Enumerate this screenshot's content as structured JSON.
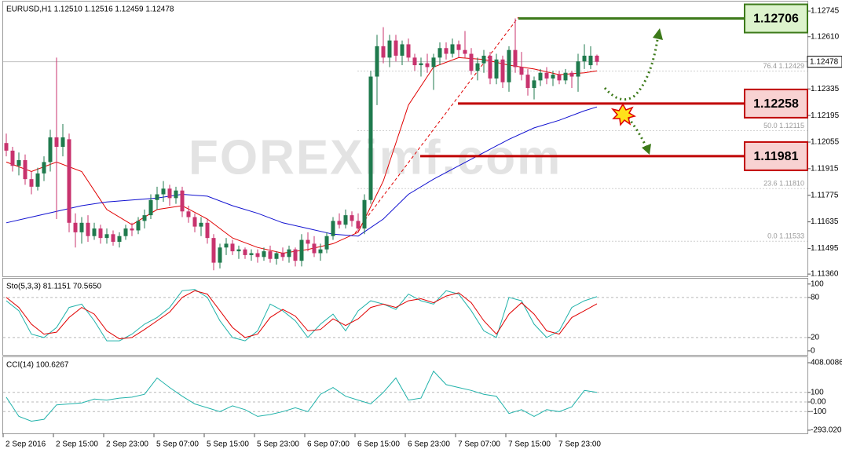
{
  "chart_data": [
    {
      "type": "candlestick",
      "title": "EURUSD,H1  1.12510 1.12516 1.12459 1.12478",
      "watermark": "FOREXimf.com",
      "up_color": "#1f7a4d",
      "down_color": "#c8336e",
      "xlim": [
        -0.5,
        127.5
      ],
      "ylim": [
        1.11348,
        1.12795
      ],
      "yticks": [
        1.12745,
        {
          "value": 1.1261,
          "label": "1.12610"
        },
        1.12335,
        1.12195,
        1.12055,
        1.11915,
        1.11775,
        1.11635,
        1.11495,
        {
          "value": 1.1136,
          "label": "1.11360"
        }
      ],
      "xticks": [
        {
          "value": 0,
          "label": "2 Sep 2016"
        },
        {
          "value": 8,
          "label": "2 Sep 15:00"
        },
        {
          "value": 16,
          "label": "2 Sep 23:00"
        },
        {
          "value": 24,
          "label": "5 Sep 07:00"
        },
        {
          "value": 32,
          "label": "5 Sep 15:00"
        },
        {
          "value": 40,
          "label": "5 Sep 23:00"
        },
        {
          "value": 48,
          "label": "6 Sep 07:00"
        },
        {
          "value": 56,
          "label": "6 Sep 15:00"
        },
        {
          "value": 64,
          "label": "6 Sep 23:00"
        },
        {
          "value": 72,
          "label": "7 Sep 07:00"
        },
        {
          "value": 80,
          "label": "7 Sep 15:00"
        },
        {
          "value": 88,
          "label": "7 Sep 23:00"
        }
      ],
      "last": 1.12478,
      "levels": [
        {
          "value": 1.12706,
          "color": "#3d7a1a",
          "fill": "#dcf3cc"
        },
        {
          "value": 1.12258,
          "color": "#c00000",
          "fill": "#f8d2d2"
        },
        {
          "value": 1.11981,
          "color": "#c00000",
          "fill": "#f8d2d2"
        }
      ],
      "fibo": [
        {
          "value": 1.12429,
          "label": "76.4  1.12429"
        },
        {
          "value": 1.12115,
          "label": "50.0  1.12115"
        },
        {
          "value": 1.1181,
          "label": "23.6  1.11810"
        },
        {
          "value": 1.11533,
          "label": "0.0  1.11533"
        }
      ],
      "candles": [
        [
          1.1205,
          1.121,
          1.1198,
          1.1201
        ],
        [
          1.1201,
          1.1203,
          1.119,
          1.1193
        ],
        [
          1.1193,
          1.12,
          1.1188,
          1.1196
        ],
        [
          1.1196,
          1.1199,
          1.1183,
          1.1186
        ],
        [
          1.1186,
          1.119,
          1.1178,
          1.1182
        ],
        [
          1.1182,
          1.1192,
          1.118,
          1.1189
        ],
        [
          1.1189,
          1.1198,
          1.1185,
          1.1195
        ],
        [
          1.1195,
          1.1212,
          1.119,
          1.1208
        ],
        [
          1.1208,
          1.125,
          1.1165,
          1.1203
        ],
        [
          1.1203,
          1.1215,
          1.1198,
          1.1208
        ],
        [
          1.1207,
          1.121,
          1.1158,
          1.1163
        ],
        [
          1.1163,
          1.1168,
          1.115,
          1.1158
        ],
        [
          1.1158,
          1.1166,
          1.1152,
          1.1163
        ],
        [
          1.1163,
          1.1167,
          1.1153,
          1.1156
        ],
        [
          1.1156,
          1.1163,
          1.1154,
          1.116
        ],
        [
          1.116,
          1.1162,
          1.1152,
          1.1155
        ],
        [
          1.1155,
          1.116,
          1.1152,
          1.1157
        ],
        [
          1.1157,
          1.1159,
          1.1151,
          1.1153
        ],
        [
          1.1153,
          1.1158,
          1.115,
          1.1156
        ],
        [
          1.1156,
          1.1162,
          1.1154,
          1.116
        ],
        [
          1.116,
          1.1163,
          1.1156,
          1.1159
        ],
        [
          1.1159,
          1.1166,
          1.1157,
          1.1164
        ],
        [
          1.1164,
          1.117,
          1.116,
          1.1167
        ],
        [
          1.1167,
          1.1178,
          1.1165,
          1.1175
        ],
        [
          1.1175,
          1.1182,
          1.117,
          1.1178
        ],
        [
          1.1178,
          1.1185,
          1.1174,
          1.1181
        ],
        [
          1.1181,
          1.1183,
          1.1172,
          1.1176
        ],
        [
          1.1176,
          1.1182,
          1.1173,
          1.118
        ],
        [
          1.118,
          1.1182,
          1.1166,
          1.1169
        ],
        [
          1.1169,
          1.1172,
          1.1163,
          1.1166
        ],
        [
          1.1166,
          1.1168,
          1.1158,
          1.1161
        ],
        [
          1.1161,
          1.1166,
          1.1156,
          1.1163
        ],
        [
          1.1163,
          1.1165,
          1.1152,
          1.1155
        ],
        [
          1.1155,
          1.1157,
          1.1138,
          1.1142
        ],
        [
          1.1142,
          1.1152,
          1.1139,
          1.115
        ],
        [
          1.115,
          1.1155,
          1.1146,
          1.1152
        ],
        [
          1.1152,
          1.1154,
          1.1146,
          1.1148
        ],
        [
          1.1148,
          1.1151,
          1.1144,
          1.1149
        ],
        [
          1.1149,
          1.115,
          1.1144,
          1.1146
        ],
        [
          1.1146,
          1.1149,
          1.1143,
          1.1147
        ],
        [
          1.1147,
          1.1149,
          1.1142,
          1.1145
        ],
        [
          1.1145,
          1.115,
          1.1143,
          1.1148
        ],
        [
          1.1148,
          1.1151,
          1.1142,
          1.1144
        ],
        [
          1.1144,
          1.1148,
          1.1141,
          1.1147
        ],
        [
          1.1147,
          1.115,
          1.1143,
          1.1145
        ],
        [
          1.1145,
          1.1151,
          1.1142,
          1.1149
        ],
        [
          1.1149,
          1.115,
          1.114,
          1.1143
        ],
        [
          1.1143,
          1.1157,
          1.114,
          1.1154
        ],
        [
          1.1154,
          1.1158,
          1.1148,
          1.1152
        ],
        [
          1.1152,
          1.1156,
          1.1145,
          1.1147
        ],
        [
          1.1147,
          1.1152,
          1.1143,
          1.1149
        ],
        [
          1.1149,
          1.1158,
          1.1147,
          1.1156
        ],
        [
          1.1156,
          1.1166,
          1.1154,
          1.1164
        ],
        [
          1.1164,
          1.1168,
          1.116,
          1.1162
        ],
        [
          1.1162,
          1.117,
          1.116,
          1.1167
        ],
        [
          1.1167,
          1.1169,
          1.1161,
          1.1164
        ],
        [
          1.1164,
          1.1168,
          1.1158,
          1.116
        ],
        [
          1.116,
          1.1178,
          1.1157,
          1.1175
        ],
        [
          1.1175,
          1.1243,
          1.1173,
          1.124
        ],
        [
          1.124,
          1.1262,
          1.1225,
          1.1256
        ],
        [
          1.1256,
          1.1266,
          1.1247,
          1.125
        ],
        [
          1.125,
          1.1262,
          1.1245,
          1.1259
        ],
        [
          1.1259,
          1.1262,
          1.1248,
          1.1251
        ],
        [
          1.1251,
          1.1259,
          1.1246,
          1.1257
        ],
        [
          1.1257,
          1.126,
          1.1248,
          1.125
        ],
        [
          1.125,
          1.1252,
          1.1243,
          1.1246
        ],
        [
          1.1246,
          1.125,
          1.124,
          1.1247
        ],
        [
          1.1247,
          1.1252,
          1.1242,
          1.1245
        ],
        [
          1.1245,
          1.1252,
          1.1233,
          1.125
        ],
        [
          1.125,
          1.1258,
          1.1246,
          1.1255
        ],
        [
          1.1255,
          1.1258,
          1.1249,
          1.1252
        ],
        [
          1.1252,
          1.126,
          1.125,
          1.1257
        ],
        [
          1.1257,
          1.1259,
          1.125,
          1.1254
        ],
        [
          1.1254,
          1.1264,
          1.125,
          1.1252
        ],
        [
          1.1252,
          1.1255,
          1.1241,
          1.1243
        ],
        [
          1.1243,
          1.125,
          1.1238,
          1.1247
        ],
        [
          1.1247,
          1.1254,
          1.1242,
          1.1251
        ],
        [
          1.1251,
          1.1253,
          1.1236,
          1.1239
        ],
        [
          1.1239,
          1.1252,
          1.1236,
          1.1249
        ],
        [
          1.1249,
          1.1251,
          1.1234,
          1.1237
        ],
        [
          1.1237,
          1.1256,
          1.1232,
          1.1254
        ],
        [
          1.1254,
          1.12706,
          1.1242,
          1.1245
        ],
        [
          1.1245,
          1.1253,
          1.1238,
          1.1241
        ],
        [
          1.1241,
          1.1244,
          1.123,
          1.1234
        ],
        [
          1.1234,
          1.124,
          1.1228,
          1.1238
        ],
        [
          1.1238,
          1.1244,
          1.1235,
          1.1242
        ],
        [
          1.1242,
          1.1245,
          1.1236,
          1.1239
        ],
        [
          1.1239,
          1.1243,
          1.1235,
          1.1241
        ],
        [
          1.1241,
          1.1243,
          1.1236,
          1.1238
        ],
        [
          1.1238,
          1.1244,
          1.1236,
          1.1242
        ],
        [
          1.1242,
          1.1243,
          1.1234,
          1.124
        ],
        [
          1.124,
          1.1252,
          1.1232,
          1.1248
        ],
        [
          1.1248,
          1.1257,
          1.1244,
          1.1251
        ],
        [
          1.1246,
          1.1256,
          1.1244,
          1.1251
        ],
        [
          1.1251,
          1.12516,
          1.12459,
          1.12478
        ]
      ],
      "ma_x": [
        0,
        4,
        8,
        12,
        16,
        20,
        24,
        28,
        32,
        36,
        40,
        44,
        48,
        52,
        56,
        60,
        64,
        68,
        72,
        76,
        80,
        84,
        88,
        92,
        94
      ],
      "series": [
        {
          "color": "#e00000",
          "values": [
            1.1195,
            1.119,
            1.1195,
            1.119,
            1.117,
            1.1162,
            1.117,
            1.1172,
            1.1165,
            1.1155,
            1.115,
            1.1147,
            1.1149,
            1.1152,
            1.1158,
            1.1185,
            1.1225,
            1.1245,
            1.125,
            1.1249,
            1.1246,
            1.1244,
            1.1241,
            1.1242,
            1.1243
          ]
        },
        {
          "color": "#1010d0",
          "values": [
            1.1163,
            1.1166,
            1.1169,
            1.1172,
            1.1174,
            1.1175,
            1.1176,
            1.1178,
            1.1177,
            1.1172,
            1.1168,
            1.1163,
            1.116,
            1.1157,
            1.1156,
            1.1165,
            1.1178,
            1.1186,
            1.1193,
            1.12,
            1.1207,
            1.1213,
            1.1217,
            1.1222,
            1.1224
          ]
        }
      ]
    },
    {
      "type": "line",
      "title": "Sto(5,3,3) 81.1151 70.5650",
      "xlim": [
        -0.5,
        127.5
      ],
      "ylim": [
        -6,
        108
      ],
      "yticks": [
        100,
        80,
        20,
        0
      ],
      "level_lines": [
        80,
        20
      ],
      "x": [
        0,
        2,
        4,
        6,
        8,
        10,
        12,
        14,
        16,
        18,
        20,
        22,
        24,
        26,
        28,
        30,
        32,
        34,
        36,
        38,
        40,
        42,
        44,
        46,
        48,
        50,
        52,
        54,
        56,
        58,
        60,
        62,
        64,
        66,
        68,
        70,
        72,
        74,
        76,
        78,
        80,
        82,
        84,
        86,
        88,
        90,
        92,
        94
      ],
      "series": [
        {
          "color": "#20b2aa",
          "values": [
            75,
            60,
            25,
            20,
            35,
            65,
            70,
            45,
            15,
            15,
            25,
            40,
            50,
            65,
            90,
            92,
            80,
            45,
            20,
            15,
            30,
            70,
            60,
            45,
            20,
            40,
            55,
            30,
            60,
            75,
            70,
            62,
            85,
            75,
            70,
            90,
            85,
            60,
            30,
            20,
            80,
            75,
            40,
            20,
            30,
            65,
            75,
            81.1151
          ]
        },
        {
          "color": "#e00000",
          "values": [
            80,
            65,
            40,
            25,
            28,
            50,
            65,
            55,
            30,
            18,
            20,
            32,
            45,
            58,
            80,
            90,
            85,
            60,
            35,
            20,
            25,
            50,
            62,
            52,
            30,
            32,
            48,
            38,
            48,
            65,
            70,
            65,
            75,
            78,
            72,
            82,
            87,
            72,
            45,
            25,
            55,
            72,
            55,
            30,
            25,
            50,
            60,
            70.565
          ]
        }
      ]
    },
    {
      "type": "line",
      "title": "CCI(14) 100.6267",
      "xlim": [
        -0.5,
        127.5
      ],
      "ylim": [
        -326,
        465
      ],
      "yticks": [
        408.0086,
        100,
        {
          "value": 0,
          "label": "0.00"
        },
        -100,
        -293.0203
      ],
      "level_lines": [
        100,
        0,
        -100
      ],
      "x": [
        0,
        2,
        4,
        6,
        8,
        10,
        12,
        14,
        16,
        18,
        20,
        22,
        24,
        26,
        28,
        30,
        32,
        34,
        36,
        38,
        40,
        42,
        44,
        46,
        48,
        50,
        52,
        54,
        56,
        58,
        60,
        62,
        64,
        66,
        68,
        70,
        72,
        74,
        76,
        78,
        80,
        82,
        84,
        86,
        88,
        90,
        92,
        94
      ],
      "series": [
        {
          "color": "#20b2aa",
          "values": [
            50,
            -150,
            -200,
            -180,
            -30,
            -20,
            -10,
            30,
            20,
            40,
            50,
            80,
            250,
            150,
            60,
            -20,
            -60,
            -100,
            -40,
            -80,
            -150,
            -130,
            -100,
            -60,
            -100,
            80,
            150,
            60,
            20,
            -20,
            100,
            250,
            20,
            40,
            320,
            180,
            150,
            120,
            80,
            60,
            -120,
            -80,
            -150,
            -80,
            -100,
            -50,
            120,
            100.6267
          ]
        }
      ]
    }
  ]
}
